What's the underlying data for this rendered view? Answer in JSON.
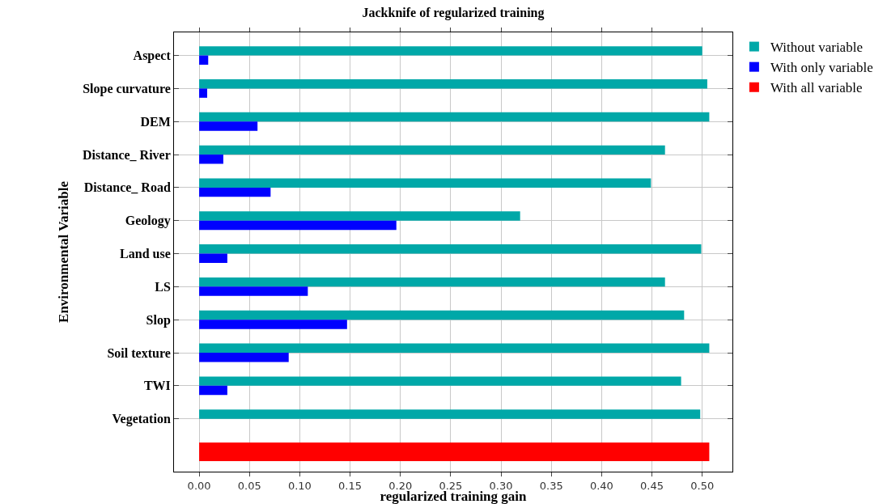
{
  "chart_data": {
    "type": "bar",
    "orientation": "horizontal",
    "title": "Jackknife of regularized training",
    "xlabel": "regularized training gain",
    "ylabel": "Environmental Variable",
    "categories": [
      "Aspect",
      "Slope curvature",
      "DEM",
      "Distance_ River",
      "Distance_ Road",
      "Geology",
      "Land use",
      "LS",
      "Slop",
      "Soil texture",
      "TWI",
      "Vegetation",
      null
    ],
    "series": [
      {
        "name": "Without variable",
        "color": "#00a8a8",
        "values": [
          0.5,
          0.505,
          0.507,
          0.463,
          0.449,
          0.319,
          0.499,
          0.463,
          0.482,
          0.507,
          0.479,
          0.498,
          null
        ]
      },
      {
        "name": "With only variable",
        "color": "#0000ff",
        "values": [
          0.009,
          0.008,
          0.058,
          0.024,
          0.071,
          0.196,
          0.028,
          0.108,
          0.147,
          0.089,
          0.028,
          0,
          null
        ]
      },
      {
        "name": "With all variable",
        "color": "#ff0000",
        "values": [
          null,
          null,
          null,
          null,
          null,
          null,
          null,
          null,
          null,
          null,
          null,
          null,
          0.507
        ]
      }
    ],
    "xlim": [
      -0.025,
      0.53
    ],
    "xticks": [
      {
        "value": 0,
        "label": "0.00"
      },
      {
        "value": 0.05,
        "label": "0.05"
      },
      {
        "value": 0.1,
        "label": "0.10"
      },
      {
        "value": 0.15,
        "label": "0.15"
      },
      {
        "value": 0.2,
        "label": "0.20"
      },
      {
        "value": 0.25,
        "label": "0.25"
      },
      {
        "value": 0.3,
        "label": "0.30"
      },
      {
        "value": 0.35,
        "label": "0.35"
      },
      {
        "value": 0.4,
        "label": "0.40"
      },
      {
        "value": 0.45,
        "label": "0.45"
      },
      {
        "value": 0.5,
        "label": "0.50"
      }
    ],
    "grid": true,
    "legend": "top right"
  }
}
